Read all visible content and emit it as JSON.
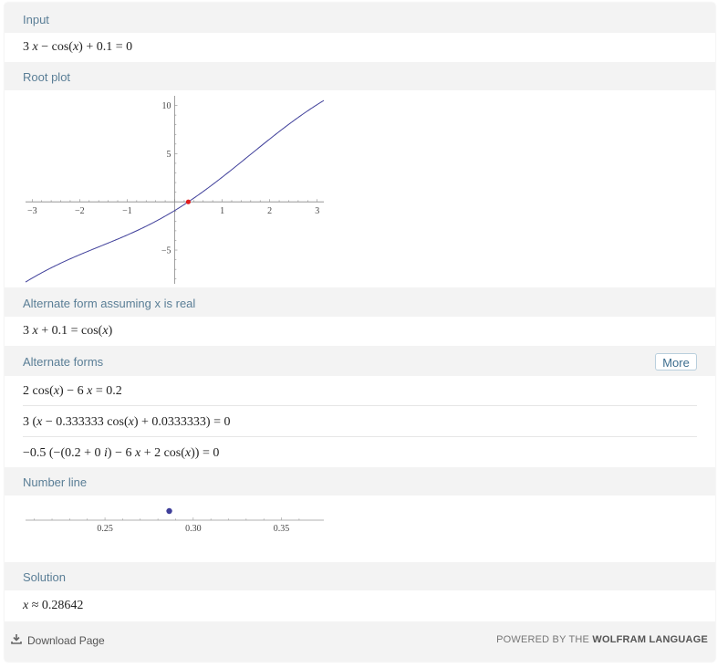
{
  "pods": {
    "input": {
      "title": "Input",
      "expression": "3 x − cos(x) + 0.1 = 0"
    },
    "root_plot": {
      "title": "Root plot",
      "x_ticks": [
        "−3",
        "−2",
        "−1",
        "1",
        "2",
        "3"
      ],
      "y_ticks": [
        "10",
        "5",
        "−5"
      ]
    },
    "alternate_real": {
      "title": "Alternate form assuming x is real",
      "expression": "3 x + 0.1 = cos(x)"
    },
    "alternate_forms": {
      "title": "Alternate forms",
      "more_label": "More",
      "forms": [
        "2 cos(x) − 6 x = 0.2",
        "3 (x − 0.333333 cos(x) + 0.0333333) = 0",
        "−0.5 (−(0.2 + 0 i) − 6 x + 2 cos(x)) = 0"
      ]
    },
    "number_line": {
      "title": "Number line",
      "ticks": [
        "0.25",
        "0.30",
        "0.35"
      ]
    },
    "solution": {
      "title": "Solution",
      "expression": "x ≈ 0.28642"
    }
  },
  "footer": {
    "download_label": "Download Page",
    "powered_prefix": "POWERED BY THE",
    "powered_brand": "WOLFRAM LANGUAGE"
  },
  "colors": {
    "pod_header": "#5a7e96",
    "curve": "#3f3f9a",
    "root_point": "#e21d1d",
    "number_line_point": "#3f3f9a"
  },
  "chart_data": [
    {
      "type": "line",
      "function": "3x − cos(x) + 0.1",
      "xlim": [
        -3.14,
        3.14
      ],
      "ylim": [
        -8.5,
        11
      ],
      "x_ticks": [
        -3,
        -2,
        -1,
        1,
        2,
        3
      ],
      "y_ticks": [
        -5,
        5,
        10
      ],
      "root": {
        "x": 0.28642,
        "y": 0
      }
    },
    {
      "type": "scatter",
      "xlim": [
        0.205,
        0.374
      ],
      "x_ticks": [
        0.25,
        0.3,
        0.35
      ],
      "points": [
        {
          "x": 0.28642
        }
      ]
    }
  ]
}
